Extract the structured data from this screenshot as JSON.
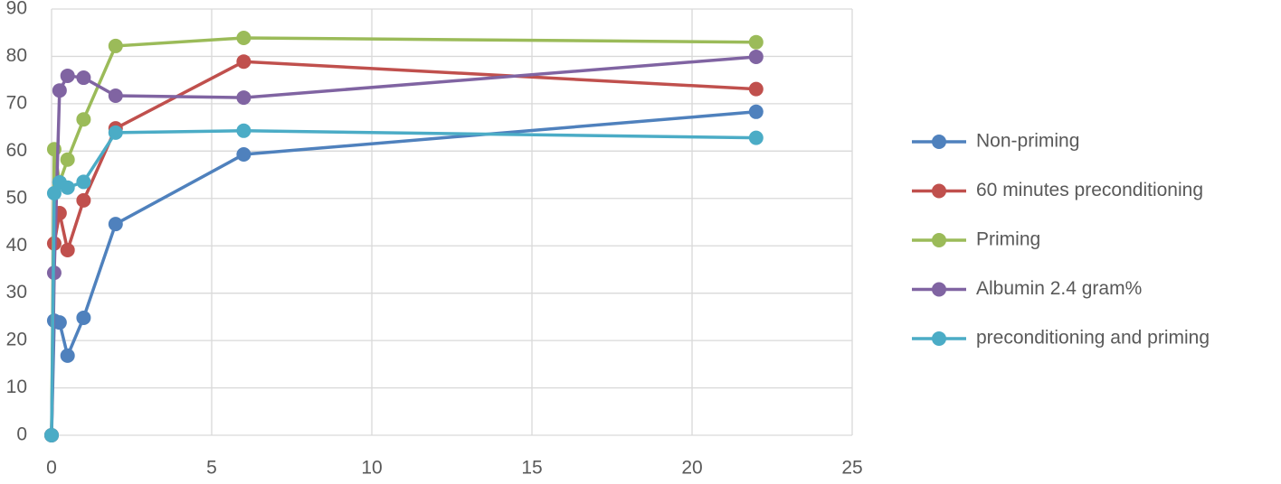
{
  "chart_data": {
    "type": "line",
    "x": [
      0,
      0.083,
      0.25,
      0.5,
      1,
      2,
      6,
      22
    ],
    "series": [
      {
        "name": "Non-priming",
        "color": "#4f81bd",
        "values": [
          0,
          24.2,
          23.8,
          16.8,
          24.8,
          44.6,
          59.3,
          68.3
        ]
      },
      {
        "name": "60 minutes preconditioning",
        "color": "#c0504d",
        "values": [
          0,
          40.5,
          46.9,
          39.1,
          49.6,
          64.8,
          78.9,
          73.1
        ]
      },
      {
        "name": "Priming",
        "color": "#9bbb59",
        "values": [
          0,
          60.4,
          53.4,
          58.2,
          66.7,
          82.2,
          83.9,
          83
        ]
      },
      {
        "name": "Albumin 2.4 gram%",
        "color": "#8064a2",
        "values": [
          0,
          34.3,
          72.8,
          75.9,
          75.5,
          71.7,
          71.3,
          79.9
        ]
      },
      {
        "name": "preconditioning and priming",
        "color": "#4bacc6",
        "values": [
          0,
          51.1,
          53.4,
          52.3,
          53.5,
          63.9,
          64.3,
          62.8
        ]
      }
    ],
    "xlim": [
      0,
      25
    ],
    "xticks": [
      0,
      5,
      10,
      15,
      20,
      25
    ],
    "ylim": [
      0,
      90
    ],
    "yticks": [
      0,
      10,
      20,
      30,
      40,
      50,
      60,
      70,
      80,
      90
    ],
    "grid": true,
    "legend": "right"
  }
}
